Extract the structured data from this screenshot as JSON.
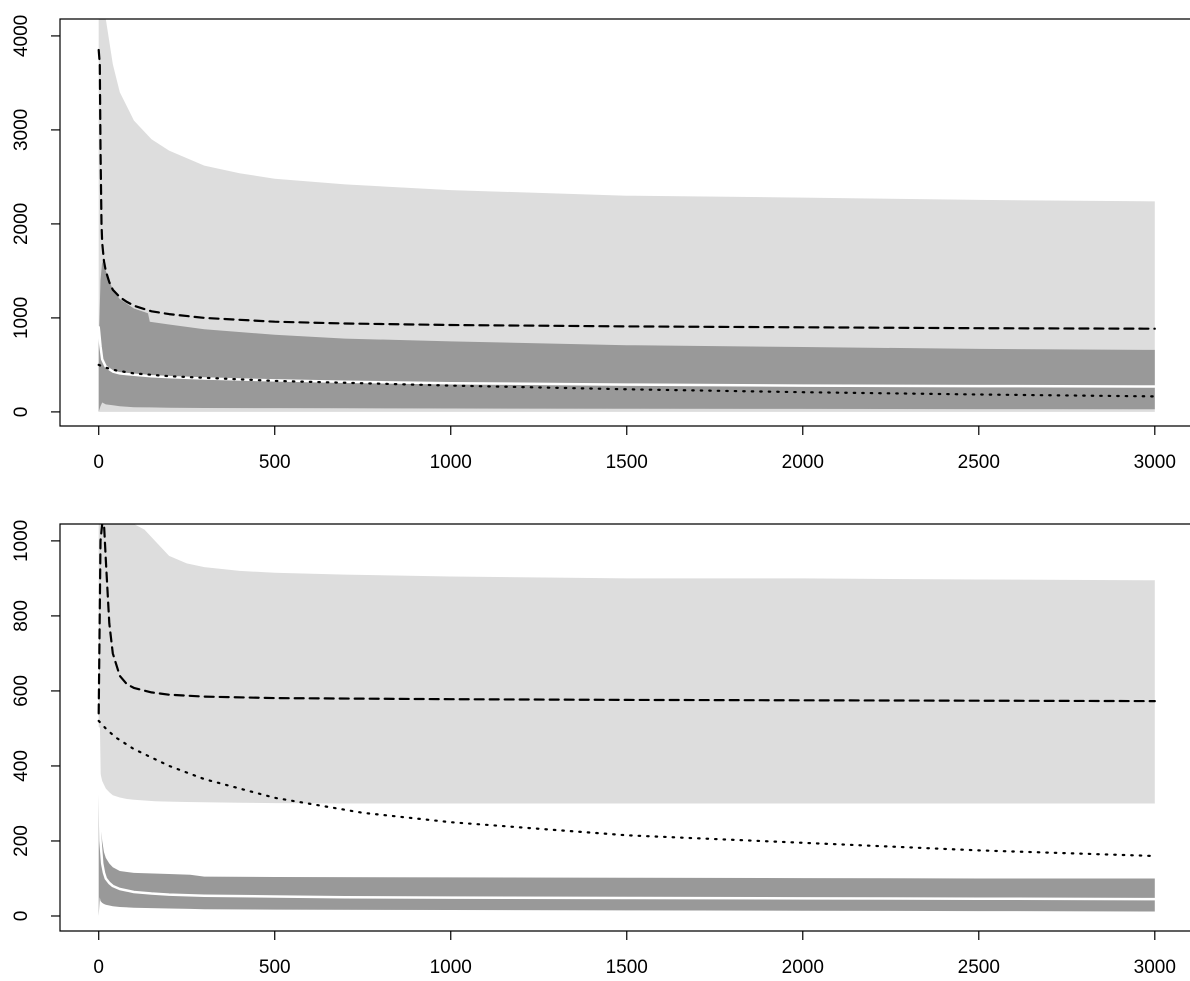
{
  "chart_data": [
    {
      "type": "area",
      "title": "",
      "xlabel": "",
      "ylabel": "",
      "xlim": [
        -110,
        3100
      ],
      "ylim": [
        -150,
        4180
      ],
      "grid": false,
      "x_ticks": [
        0,
        500,
        1000,
        1500,
        2000,
        2500,
        3000
      ],
      "y_ticks": [
        0,
        1000,
        2000,
        3000,
        4000
      ],
      "x_tick_labels": [
        "0",
        "500",
        "1000",
        "1500",
        "2000",
        "2500",
        "3000"
      ],
      "y_tick_labels": [
        "0",
        "1000",
        "2000",
        "3000",
        "4000"
      ],
      "bands": [
        {
          "color": "#dddddd",
          "x": [
            0,
            5,
            10,
            20,
            40,
            60,
            80,
            100,
            150,
            200,
            300,
            400,
            500,
            700,
            1000,
            1500,
            2000,
            2500,
            3000
          ],
          "lower": [
            0,
            0,
            0,
            0,
            0,
            0,
            0,
            0,
            0,
            0,
            0,
            0,
            0,
            0,
            0,
            0,
            0,
            0,
            0
          ],
          "upper": [
            4180,
            4180,
            4180,
            4180,
            3700,
            3400,
            3250,
            3100,
            2900,
            2780,
            2620,
            2540,
            2480,
            2420,
            2360,
            2300,
            2280,
            2255,
            2240
          ]
        },
        {
          "color": "#999999",
          "x": [
            0,
            5,
            10,
            20,
            40,
            60,
            80,
            100,
            140,
            145,
            200,
            300,
            500,
            700,
            1000,
            1500,
            2000,
            2500,
            3000
          ],
          "lower": [
            0,
            60,
            100,
            80,
            70,
            60,
            55,
            50,
            48,
            48,
            45,
            42,
            40,
            38,
            36,
            34,
            32,
            30,
            28
          ],
          "upper": [
            700,
            1400,
            1600,
            1500,
            1300,
            1200,
            1150,
            1100,
            1050,
            960,
            930,
            880,
            820,
            780,
            750,
            710,
            690,
            670,
            660
          ]
        }
      ],
      "series": [
        {
          "style": "dashed",
          "color": "#000000",
          "x": [
            0,
            3,
            5,
            8,
            10,
            15,
            20,
            30,
            40,
            60,
            80,
            100,
            150,
            200,
            300,
            500,
            700,
            1000,
            1500,
            2000,
            2500,
            3000
          ],
          "y": [
            3850,
            3700,
            2800,
            2000,
            1800,
            1600,
            1500,
            1380,
            1300,
            1220,
            1170,
            1130,
            1070,
            1040,
            1000,
            960,
            940,
            925,
            910,
            900,
            890,
            885
          ]
        },
        {
          "style": "solid",
          "color": "#ffffff",
          "x": [
            0,
            5,
            10,
            20,
            40,
            60,
            100,
            150,
            200,
            300,
            500,
            700,
            1000,
            1500,
            2000,
            2500,
            3000
          ],
          "y": [
            900,
            700,
            560,
            480,
            430,
            410,
            395,
            380,
            370,
            355,
            335,
            320,
            305,
            290,
            280,
            275,
            270
          ]
        },
        {
          "style": "dotted",
          "color": "#000000",
          "x": [
            0,
            20,
            50,
            100,
            200,
            500,
            1000,
            1500,
            2000,
            2500,
            3000
          ],
          "y": [
            500,
            470,
            440,
            410,
            380,
            330,
            280,
            240,
            210,
            185,
            165
          ]
        }
      ]
    },
    {
      "type": "area",
      "title": "",
      "xlabel": "",
      "ylabel": "",
      "xlim": [
        -110,
        3100
      ],
      "ylim": [
        -40,
        1045
      ],
      "grid": false,
      "x_ticks": [
        0,
        500,
        1000,
        1500,
        2000,
        2500,
        3000
      ],
      "y_ticks": [
        0,
        200,
        400,
        600,
        800,
        1000
      ],
      "x_tick_labels": [
        "0",
        "500",
        "1000",
        "1500",
        "2000",
        "2500",
        "3000"
      ],
      "y_tick_labels": [
        "0",
        "200",
        "400",
        "600",
        "800",
        "1000"
      ],
      "bands": [
        {
          "color": "#dddddd",
          "x": [
            0,
            10,
            20,
            30,
            40,
            60,
            80,
            100,
            130,
            160,
            200,
            250,
            300,
            400,
            500,
            700,
            1000,
            1500,
            2000,
            2500,
            3000
          ],
          "lower": [
            400,
            360,
            340,
            330,
            322,
            316,
            312,
            310,
            308,
            306,
            305,
            304,
            303,
            302,
            301,
            300,
            300,
            300,
            300,
            300,
            300
          ],
          "upper": [
            1045,
            1045,
            1045,
            1045,
            1045,
            1045,
            1045,
            1045,
            1030,
            1000,
            960,
            940,
            930,
            920,
            915,
            910,
            905,
            900,
            900,
            897,
            895
          ]
        },
        {
          "color": "#999999",
          "x": [
            0,
            3,
            5,
            10,
            15,
            20,
            30,
            40,
            60,
            100,
            200,
            260,
            300,
            500,
            1000,
            1500,
            2000,
            2500,
            3000
          ],
          "lower": [
            0,
            50,
            40,
            35,
            32,
            30,
            28,
            26,
            24,
            22,
            20,
            19,
            18,
            17,
            16,
            15,
            14,
            13,
            12
          ],
          "upper": [
            420,
            340,
            260,
            200,
            170,
            155,
            140,
            130,
            120,
            115,
            112,
            110,
            105,
            104,
            103,
            102,
            101,
            100,
            100
          ]
        }
      ],
      "series": [
        {
          "style": "dashed",
          "color": "#000000",
          "x": [
            0,
            5,
            10,
            15,
            20,
            30,
            40,
            60,
            80,
            100,
            150,
            200,
            300,
            500,
            1000,
            1500,
            2000,
            2500,
            3000
          ],
          "y": [
            540,
            1000,
            1045,
            1045,
            950,
            780,
            700,
            640,
            618,
            608,
            596,
            590,
            585,
            581,
            578,
            576,
            575,
            574,
            573
          ]
        },
        {
          "style": "solid",
          "color": "#ffffff",
          "x": [
            0,
            5,
            10,
            15,
            20,
            30,
            40,
            60,
            80,
            100,
            150,
            200,
            300,
            500,
            700,
            1000,
            1500,
            2000,
            2500,
            3000
          ],
          "y": [
            500,
            200,
            140,
            115,
            100,
            88,
            80,
            72,
            68,
            64,
            60,
            57,
            54,
            52,
            50,
            49,
            48,
            47,
            46,
            45
          ]
        },
        {
          "style": "dotted",
          "color": "#000000",
          "x": [
            0,
            10,
            25,
            50,
            100,
            200,
            300,
            500,
            750,
            1000,
            1500,
            2000,
            2500,
            3000
          ],
          "y": [
            520,
            510,
            495,
            475,
            445,
            400,
            365,
            315,
            275,
            250,
            215,
            195,
            175,
            160
          ]
        }
      ]
    }
  ]
}
